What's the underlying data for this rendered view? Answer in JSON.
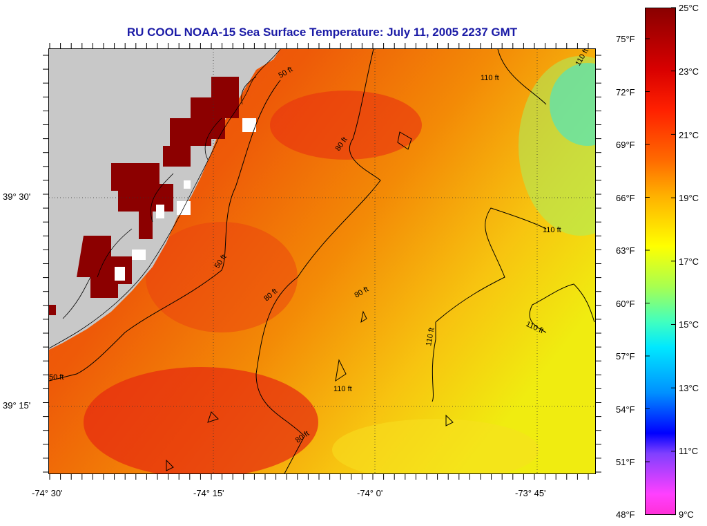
{
  "title": "RU COOL  NOAA-15  Sea Surface Temperature:  July 11, 2005 2237 GMT",
  "map": {
    "lat_labels": [
      "39° 30'",
      "39° 15'"
    ],
    "lon_labels": [
      "-74° 30'",
      "-74° 15'",
      "-74° 0'",
      "-73° 45'"
    ],
    "land_color": "#c8c8c8"
  },
  "isobaths": [
    {
      "label": "50 ft"
    },
    {
      "label": "80 ft"
    },
    {
      "label": "110 ft"
    }
  ],
  "colorbar": {
    "celsius": [
      "25°C",
      "23°C",
      "21°C",
      "19°C",
      "17°C",
      "15°C",
      "13°C",
      "11°C",
      "9°C"
    ],
    "fahrenheit": [
      "75°F",
      "72°F",
      "69°F",
      "66°F",
      "63°F",
      "60°F",
      "57°F",
      "54°F",
      "51°F",
      "48°F"
    ]
  }
}
